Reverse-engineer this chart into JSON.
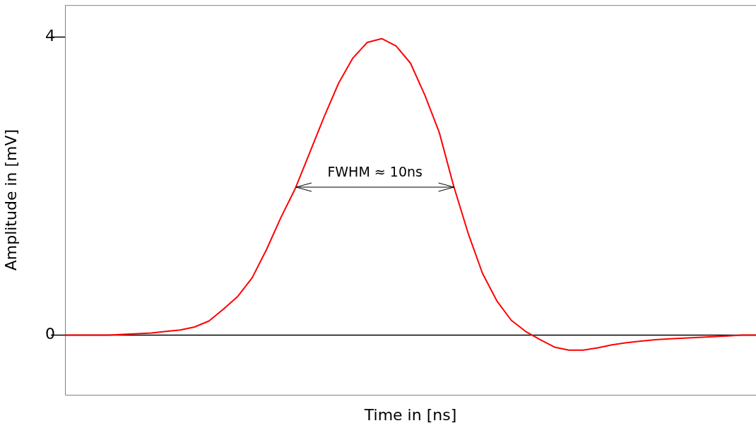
{
  "chart_data": {
    "type": "line",
    "xlabel": "Time in [ns]",
    "ylabel": "Amplitude in [mV]",
    "categories": [
      null,
      null,
      null,
      null,
      null,
      null,
      null,
      null,
      null,
      null,
      null,
      null,
      null,
      null,
      null,
      null,
      null,
      null,
      null,
      null,
      null,
      null,
      null,
      null,
      null,
      null,
      null,
      null,
      null,
      null,
      null,
      null,
      null,
      null,
      null,
      null,
      null,
      null,
      null,
      null,
      null,
      null,
      null,
      null,
      null,
      null,
      null,
      null,
      null
    ],
    "series": [
      {
        "color": "#ff0000",
        "values": [
          0,
          0,
          0,
          0,
          0.01,
          0.02,
          0.03,
          0.05,
          0.07,
          0.11,
          0.19,
          0.35,
          0.52,
          0.77,
          1.15,
          1.58,
          1.97,
          2.45,
          2.93,
          3.38,
          3.72,
          3.93,
          3.98,
          3.88,
          3.65,
          3.22,
          2.72,
          2.0,
          1.37,
          0.83,
          0.46,
          0.2,
          0.05,
          -0.06,
          -0.16,
          -0.2,
          -0.2,
          -0.17,
          -0.13,
          -0.1,
          -0.08,
          -0.06,
          -0.05,
          -0.04,
          -0.03,
          -0.02,
          -0.01,
          0,
          0
        ]
      }
    ],
    "ylim": [
      -0.8,
      4.43
    ],
    "yticks": [
      0,
      4
    ],
    "tick_labels": "y",
    "grid": false,
    "legend": false,
    "marker": "none",
    "line_style": "solid",
    "ref_lines": [
      {
        "axis": "y",
        "value": 0,
        "color": "#000000"
      }
    ],
    "annotations": [
      "FWHM ≈ 10ns"
    ]
  }
}
